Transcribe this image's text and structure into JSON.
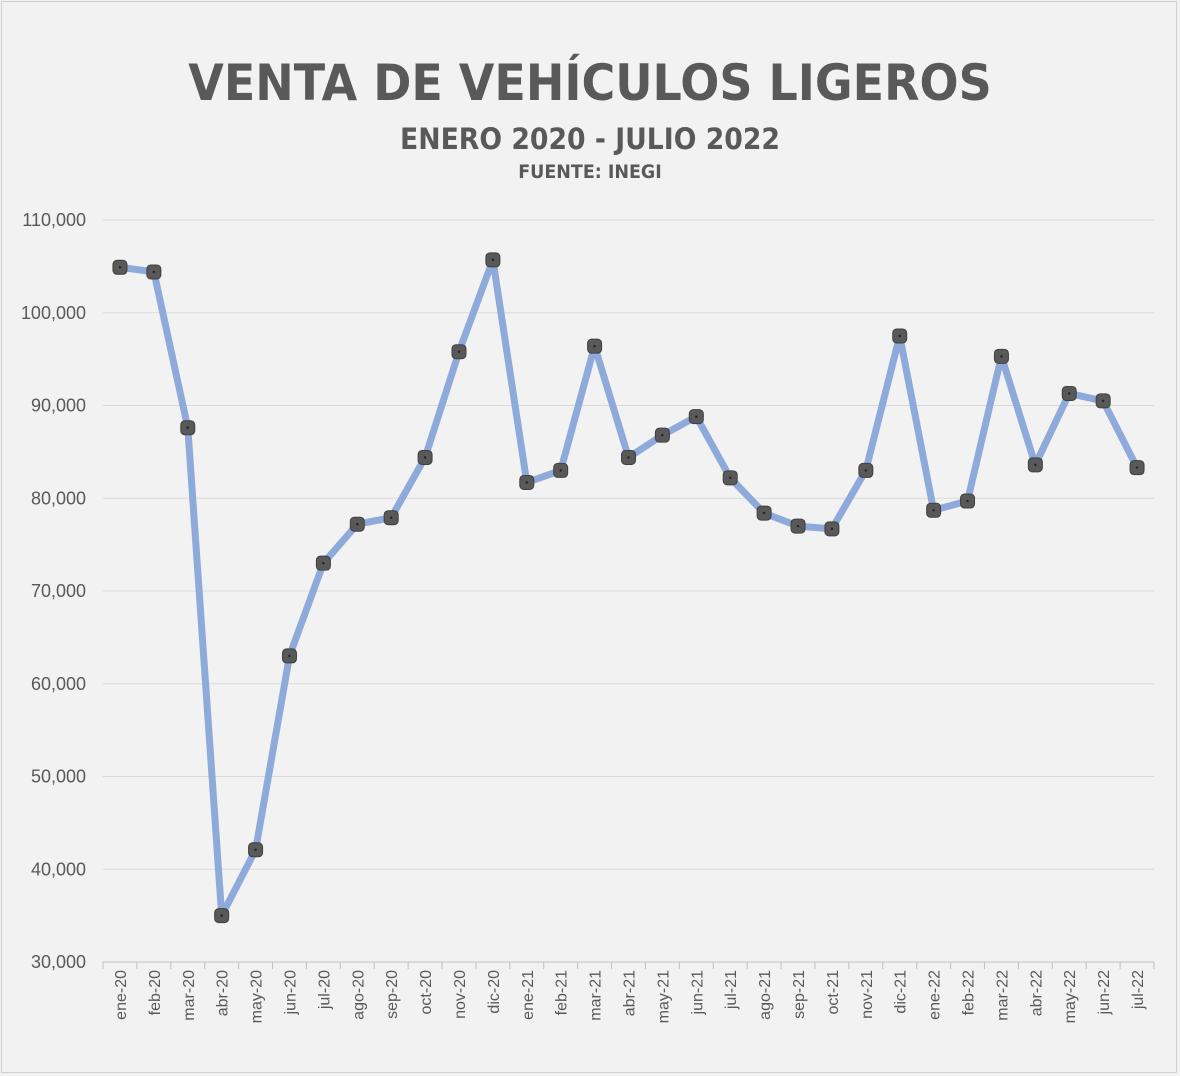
{
  "chart_data": {
    "type": "line",
    "title": "VENTA DE VEHÍCULOS LIGEROS",
    "subtitle": "ENERO 2020 - JULIO 2022",
    "source": "FUENTE: INEGI",
    "categories": [
      "ene-20",
      "feb-20",
      "mar-20",
      "abr-20",
      "may-20",
      "jun-20",
      "jul-20",
      "ago-20",
      "sep-20",
      "oct-20",
      "nov-20",
      "dic-20",
      "ene-21",
      "feb-21",
      "mar-21",
      "abr-21",
      "may-21",
      "jun-21",
      "jul-21",
      "ago-21",
      "sep-21",
      "oct-21",
      "nov-21",
      "dic-21",
      "ene-22",
      "feb-22",
      "mar-22",
      "abr-22",
      "may-22",
      "jun-22",
      "jul-22"
    ],
    "series": [
      {
        "values": [
          104900,
          104400,
          87600,
          35000,
          42100,
          63000,
          73000,
          77200,
          77900,
          84400,
          95800,
          105700,
          81700,
          83000,
          96400,
          84400,
          86800,
          88800,
          82200,
          78400,
          77000,
          76700,
          83000,
          97500,
          78700,
          79700,
          95300,
          83600,
          91300,
          90500,
          83300
        ],
        "line_color": "#8eaadb",
        "marker_color": "#595959"
      }
    ],
    "ylim": [
      30000,
      110000
    ],
    "yticks": [
      "30,000",
      "40,000",
      "50,000",
      "60,000",
      "70,000",
      "80,000",
      "90,000",
      "100,000",
      "110,000"
    ],
    "ytick_values": [
      30000,
      40000,
      50000,
      60000,
      70000,
      80000,
      90000,
      100000,
      110000
    ],
    "xlabel": "",
    "ylabel": "",
    "grid": true,
    "legend": "none"
  }
}
